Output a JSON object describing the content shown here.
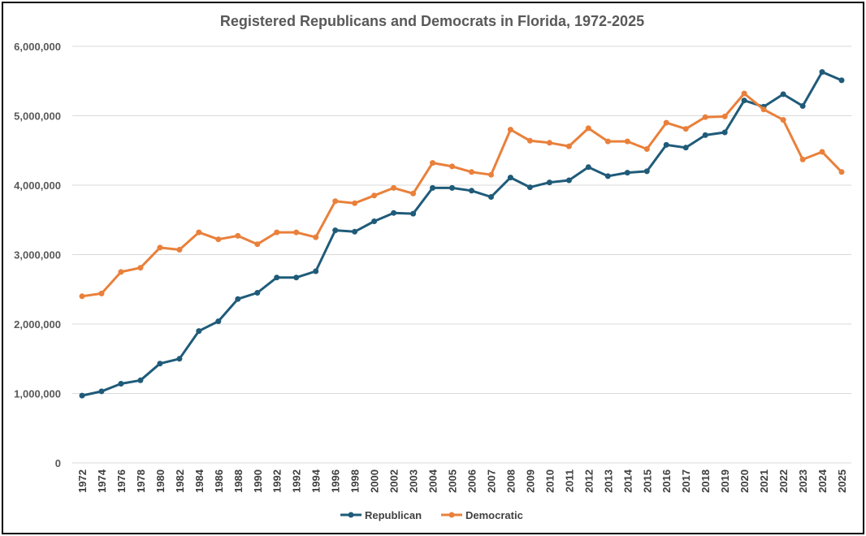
{
  "chart_data": {
    "type": "line",
    "title": "Registered Republicans and Democrats in Florida, 1972-2025",
    "xlabel": "",
    "ylabel": "",
    "ylim": [
      0,
      6000000
    ],
    "yticks": [
      0,
      1000000,
      2000000,
      3000000,
      4000000,
      5000000,
      6000000
    ],
    "ytick_labels": [
      "0",
      "1,000,000",
      "2,000,000",
      "3,000,000",
      "4,000,000",
      "5,000,000",
      "6,000,000"
    ],
    "grid": true,
    "legend_position": "bottom",
    "categories": [
      "1972",
      "1974",
      "1976",
      "1978",
      "1980",
      "1982",
      "1984",
      "1986",
      "1988",
      "1990",
      "1992",
      "1992",
      "1994",
      "1996",
      "1998",
      "2000",
      "2002",
      "2003",
      "2004",
      "2005",
      "2006",
      "2007",
      "2008",
      "2009",
      "2010",
      "2011",
      "2012",
      "2013",
      "2014",
      "2015",
      "2016",
      "2017",
      "2018",
      "2019",
      "2020",
      "2021",
      "2022",
      "2023",
      "2024",
      "2025"
    ],
    "series": [
      {
        "name": "Republican",
        "color": "#1f5b79",
        "values": [
          970000,
          1030000,
          1140000,
          1190000,
          1430000,
          1500000,
          1900000,
          2040000,
          2360000,
          2450000,
          2670000,
          2670000,
          2760000,
          3350000,
          3330000,
          3480000,
          3600000,
          3590000,
          3960000,
          3960000,
          3920000,
          3830000,
          4110000,
          3970000,
          4040000,
          4070000,
          4260000,
          4130000,
          4180000,
          4200000,
          4580000,
          4540000,
          4720000,
          4760000,
          5220000,
          5130000,
          5310000,
          5140000,
          5630000,
          5510000
        ]
      },
      {
        "name": "Democratic",
        "color": "#e9803b",
        "values": [
          2400000,
          2440000,
          2750000,
          2810000,
          3100000,
          3070000,
          3320000,
          3220000,
          3270000,
          3150000,
          3320000,
          3320000,
          3250000,
          3770000,
          3740000,
          3850000,
          3960000,
          3880000,
          4320000,
          4270000,
          4190000,
          4150000,
          4800000,
          4640000,
          4610000,
          4560000,
          4820000,
          4630000,
          4630000,
          4520000,
          4900000,
          4810000,
          4980000,
          4990000,
          5320000,
          5090000,
          4940000,
          4370000,
          4480000,
          4190000
        ]
      }
    ]
  }
}
